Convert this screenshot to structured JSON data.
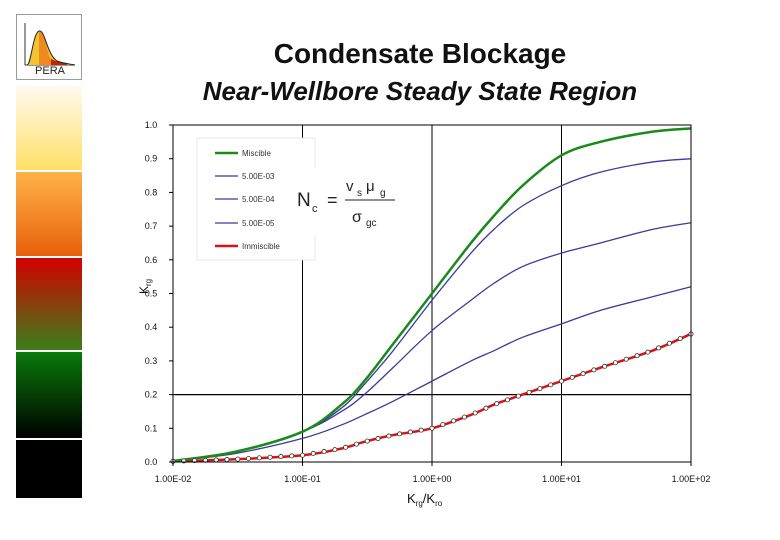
{
  "logo": {
    "text": "PERA",
    "icon": "distribution-curve-icon"
  },
  "sidebar_colors": [
    "#ffe066",
    "#f08a1e",
    "#cc1f00",
    "#0f6b0f",
    "#000000"
  ],
  "title": {
    "line1": "Condensate Blockage",
    "line2": "Near-Wellbore Steady State Region"
  },
  "chart_data": {
    "type": "line",
    "xscale": "log",
    "xlim": [
      0.01,
      100
    ],
    "ylim": [
      0,
      1
    ],
    "xlabel_main": "K",
    "xlabel_sub1": "rg",
    "xlabel_mid": "/K",
    "xlabel_sub2": "ro",
    "ylabel_main": "K",
    "ylabel_sub": "rg",
    "xticks": [
      0.01,
      0.1,
      1,
      10,
      100
    ],
    "xtick_labels": [
      "1.00E-02",
      "1.00E-01",
      "1.00E+00",
      "1.00E+01",
      "1.00E+02"
    ],
    "yticks": [
      0,
      0.1,
      0.2,
      0.3,
      0.4,
      0.5,
      0.6,
      0.7,
      0.8,
      0.9,
      1.0
    ],
    "ytick_labels": [
      "0.0",
      "0.1",
      "0.2",
      "0.3",
      "0.4",
      "0.5",
      "0.6",
      "0.7",
      "0.8",
      "0.9",
      "1.0"
    ],
    "grid": "vertical at decades, horizontal at 0.2",
    "legend_position": "top-left",
    "series": [
      {
        "name": "Miscible",
        "color": "#1a8a1a",
        "width": 2.5,
        "x": [
          0.01,
          0.03,
          0.1,
          0.2,
          0.3,
          0.5,
          1,
          2,
          3,
          5,
          10,
          20,
          50,
          100
        ],
        "y": [
          0.003,
          0.03,
          0.09,
          0.17,
          0.24,
          0.35,
          0.5,
          0.65,
          0.73,
          0.82,
          0.91,
          0.95,
          0.98,
          0.99
        ]
      },
      {
        "name": "5.00E-03",
        "color": "#3a3a9a",
        "width": 1.3,
        "x": [
          0.01,
          0.03,
          0.1,
          0.2,
          0.3,
          0.5,
          1,
          2,
          3,
          5,
          10,
          20,
          50,
          100
        ],
        "y": [
          0.003,
          0.03,
          0.09,
          0.16,
          0.23,
          0.33,
          0.48,
          0.62,
          0.69,
          0.76,
          0.82,
          0.86,
          0.89,
          0.9
        ]
      },
      {
        "name": "5.00E-04",
        "color": "#3a3a9a",
        "width": 1.3,
        "x": [
          0.01,
          0.03,
          0.1,
          0.2,
          0.3,
          0.5,
          1,
          2,
          3,
          5,
          10,
          20,
          50,
          100
        ],
        "y": [
          0.003,
          0.03,
          0.09,
          0.15,
          0.2,
          0.28,
          0.39,
          0.48,
          0.53,
          0.58,
          0.62,
          0.65,
          0.69,
          0.71
        ]
      },
      {
        "name": "5.00E-05",
        "color": "#3a3a9a",
        "width": 1.3,
        "x": [
          0.01,
          0.03,
          0.1,
          0.2,
          0.3,
          0.5,
          1,
          2,
          3,
          5,
          10,
          20,
          50,
          100
        ],
        "y": [
          0.003,
          0.025,
          0.07,
          0.11,
          0.14,
          0.18,
          0.24,
          0.3,
          0.33,
          0.37,
          0.41,
          0.45,
          0.49,
          0.52
        ]
      },
      {
        "name": "Immiscible",
        "color": "#dd1111",
        "width": 2.5,
        "markers": true,
        "x": [
          0.01,
          0.03,
          0.1,
          0.2,
          0.3,
          0.5,
          1,
          2,
          3,
          5,
          10,
          20,
          50,
          100
        ],
        "y": [
          0.002,
          0.008,
          0.02,
          0.04,
          0.06,
          0.08,
          0.1,
          0.14,
          0.17,
          0.2,
          0.24,
          0.28,
          0.33,
          0.38
        ]
      }
    ],
    "annotation": {
      "N": "N",
      "c": "c",
      "eq": "=",
      "v": "v",
      "s": "s",
      "mu": "μ",
      "g": "g",
      "sigma": "σ",
      "gc": "gc"
    }
  }
}
